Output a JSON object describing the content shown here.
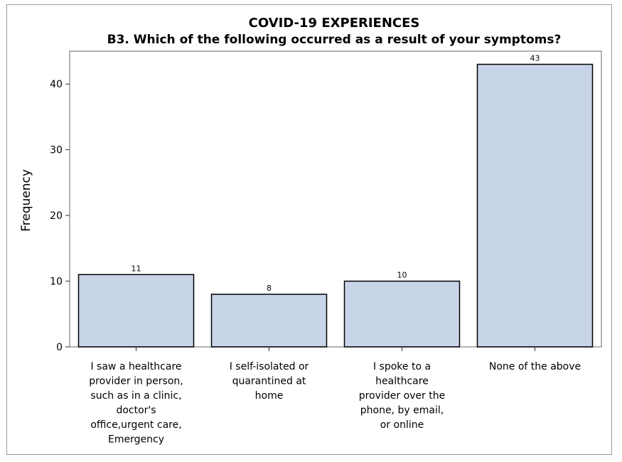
{
  "chart_data": {
    "type": "bar",
    "title": "COVID-19 EXPERIENCES",
    "subtitle": "B3. Which of the following occurred as a result of your symptoms?",
    "xlabel": "",
    "ylabel": "Frequency",
    "ylim": [
      0,
      45
    ],
    "yticks": [
      0,
      10,
      20,
      30,
      40
    ],
    "categories": [
      [
        "I saw a healthcare",
        "provider in person,",
        "such as in a clinic,",
        "doctor's",
        "office,urgent care,",
        "Emergency"
      ],
      [
        "I self-isolated or",
        "quarantined at",
        "home"
      ],
      [
        "I spoke to a",
        "healthcare",
        "provider over the",
        "phone, by email,",
        "or online"
      ],
      [
        "None of the above"
      ]
    ],
    "values": [
      11,
      8,
      10,
      43
    ],
    "data_labels": [
      "11",
      "8",
      "10",
      "43"
    ],
    "bar_color": "#c8d4e8",
    "bar_edge_color": "#000000",
    "grid": false,
    "legend": "none"
  }
}
